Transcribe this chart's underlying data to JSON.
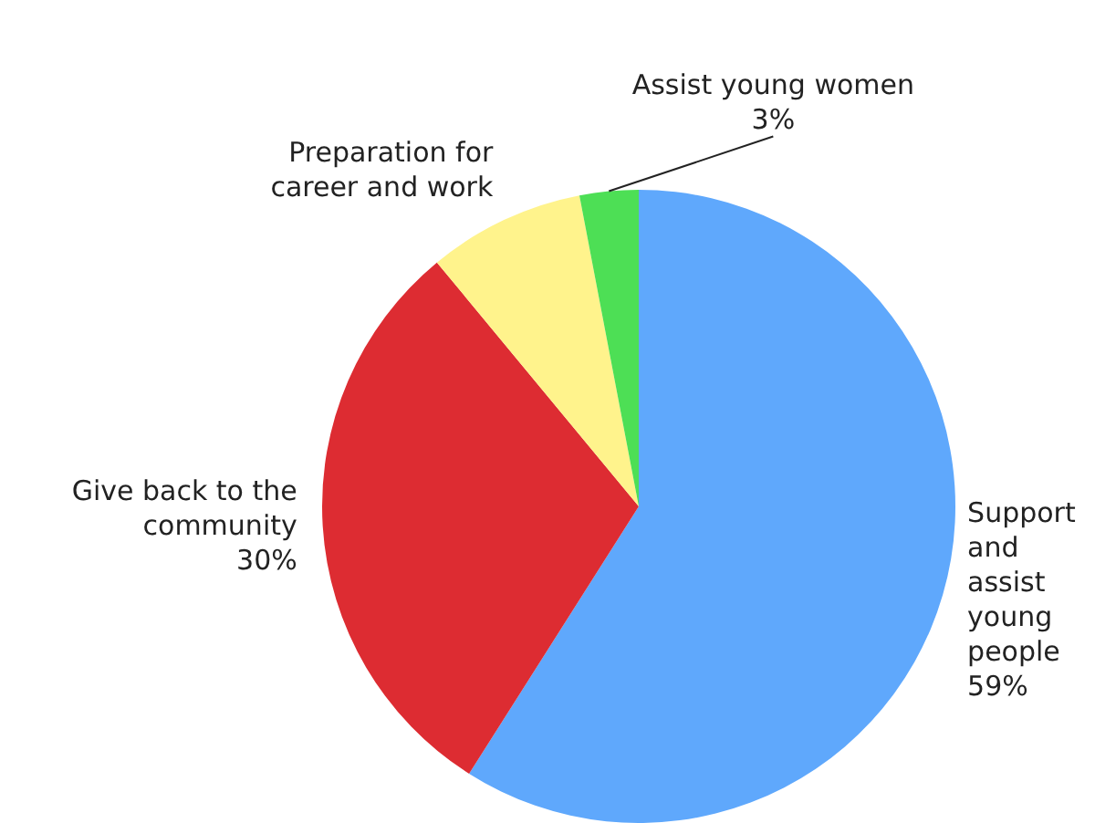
{
  "chart_data": {
    "type": "pie",
    "categories": [
      "Support and assist young people",
      "Give back to the community",
      "Preparation for career and work",
      "Assist young women"
    ],
    "values": [
      59,
      30,
      8,
      3
    ],
    "value_labels": [
      "59%",
      "30%",
      null,
      "3%"
    ],
    "colors": [
      "#5fa8fc",
      "#dd2c32",
      "#fff38c",
      "#4ddf55"
    ],
    "legend": false
  }
}
